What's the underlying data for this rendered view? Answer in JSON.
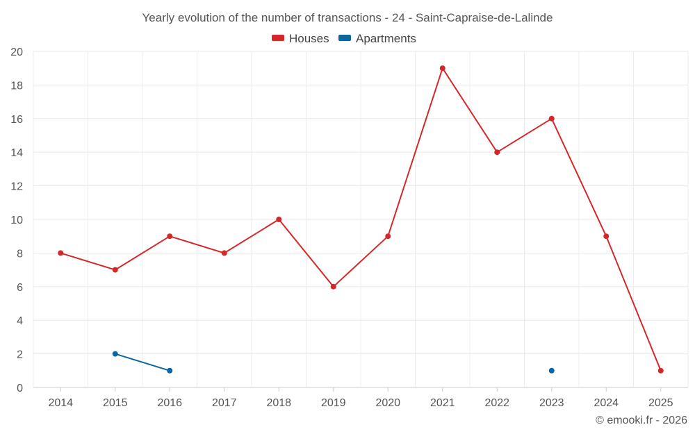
{
  "chart_data": {
    "type": "line",
    "title": "Yearly evolution of the number of transactions - 24 - Saint-Capraise-de-Lalinde",
    "categories": [
      "2014",
      "2015",
      "2016",
      "2017",
      "2018",
      "2019",
      "2020",
      "2021",
      "2022",
      "2023",
      "2024",
      "2025"
    ],
    "ylim": [
      0,
      20
    ],
    "yticks": [
      0,
      2,
      4,
      6,
      8,
      10,
      12,
      14,
      16,
      18,
      20
    ],
    "grid": true,
    "legend_position": "top-center",
    "xlabel": "",
    "ylabel": "",
    "series": [
      {
        "name": "Houses",
        "color": "#d62728",
        "values": [
          8,
          7,
          9,
          8,
          10,
          6,
          9,
          19,
          14,
          16,
          9,
          1
        ]
      },
      {
        "name": "Apartments",
        "color": "#0b66a0",
        "values": [
          null,
          2,
          1,
          null,
          null,
          null,
          null,
          null,
          null,
          1,
          null,
          null
        ]
      }
    ]
  },
  "credit": "© emooki.fr - 2026"
}
